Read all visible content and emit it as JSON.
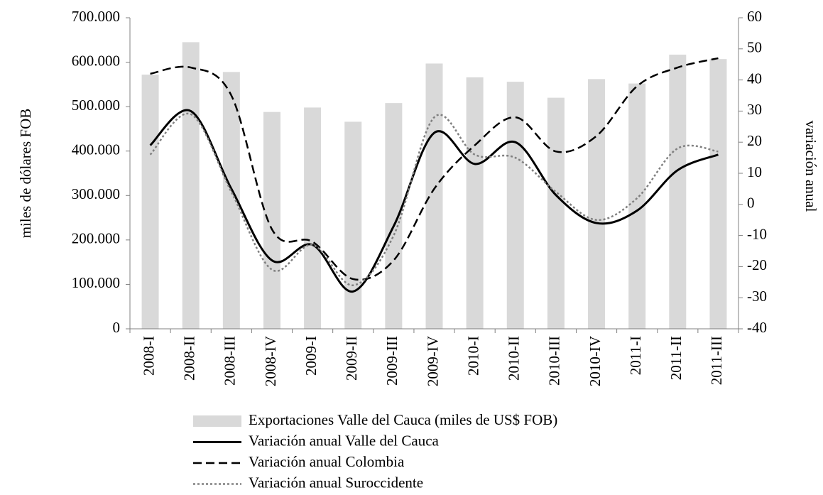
{
  "chart_data": {
    "type": "combo",
    "categories": [
      "2008-I",
      "2008-II",
      "2008-III",
      "2008-IV",
      "2009-I",
      "2009-II",
      "2009-III",
      "2009-IV",
      "2010-I",
      "2010-II",
      "2010-III",
      "2010-IV",
      "2011-I",
      "2011-II",
      "2011-III"
    ],
    "ylabel": "miles de dólares FOB",
    "y2label": "variación anual",
    "ylim": [
      0,
      700000
    ],
    "yticks": [
      0,
      {
        "value": 100000,
        "label": "100.000"
      },
      {
        "value": 200000,
        "label": "200.000"
      },
      {
        "value": 300000,
        "label": "300.000"
      },
      {
        "value": 400000,
        "label": "400.000"
      },
      {
        "value": 500000,
        "label": "500.000"
      },
      {
        "value": 600000,
        "label": "600.000"
      },
      {
        "value": 700000,
        "label": "700.000"
      }
    ],
    "y2lim": [
      -40,
      60
    ],
    "y2ticks": [
      -40,
      -30,
      -20,
      -10,
      0,
      10,
      20,
      30,
      40,
      50,
      60
    ],
    "series": [
      {
        "name": "Exportaciones Valle del Cauca (miles de US$ FOB)",
        "type": "bar",
        "color": "#d9d9d9",
        "values": [
          572000,
          645000,
          578000,
          488000,
          498000,
          466000,
          508000,
          597000,
          566000,
          556000,
          520000,
          562000,
          552000,
          617000,
          607000
        ]
      },
      {
        "name": "Variación anual Valle del Cauca",
        "type": "line",
        "axis": "y2",
        "color": "#000000",
        "style": "solid",
        "values": [
          19,
          30,
          5,
          -18,
          -13,
          -28,
          -7,
          23,
          13,
          20,
          3,
          -6,
          -2,
          11,
          16
        ]
      },
      {
        "name": "Variación anual Colombia",
        "type": "line",
        "axis": "y2",
        "color": "#000000",
        "style": "dashed",
        "values": [
          42,
          44,
          35,
          -8,
          -12,
          -24,
          -18,
          5,
          19,
          28,
          17,
          22,
          38,
          44,
          47
        ]
      },
      {
        "name": "Variación anual Suroccidente",
        "type": "line",
        "axis": "y2",
        "color": "#808080",
        "style": "dotted",
        "values": [
          16,
          29,
          4,
          -21,
          -13,
          -26,
          -10,
          28,
          16,
          15,
          4,
          -5,
          2,
          18,
          17
        ]
      }
    ]
  }
}
